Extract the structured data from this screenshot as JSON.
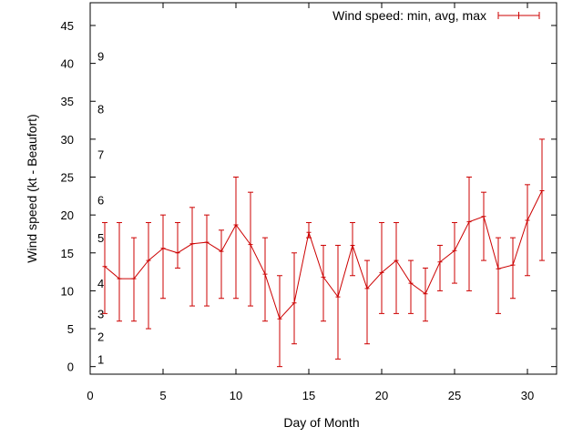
{
  "chart_data": {
    "type": "line",
    "xlabel": "Day of Month",
    "ylabel": "Wind speed (kt - Beaufort)",
    "xlim": [
      0,
      32
    ],
    "ylim": [
      -1,
      48
    ],
    "xticks": [
      0,
      5,
      10,
      15,
      20,
      25,
      30
    ],
    "yticks": [
      0,
      5,
      10,
      15,
      20,
      25,
      30,
      35,
      40,
      45
    ],
    "grid": false,
    "legend_position": "top-right",
    "color": "#cc0000",
    "series": [
      {
        "name": "Wind speed: min, avg, max",
        "x": [
          1,
          2,
          3,
          4,
          5,
          6,
          7,
          8,
          9,
          10,
          11,
          12,
          13,
          14,
          15,
          16,
          17,
          18,
          19,
          20,
          21,
          22,
          23,
          24,
          25,
          26,
          27,
          28,
          29,
          30,
          31
        ],
        "avg": [
          13.2,
          11.6,
          11.6,
          14,
          15.6,
          15,
          16.2,
          16.4,
          15.2,
          18.7,
          16.1,
          12.2,
          6.3,
          8.4,
          17.7,
          11.8,
          9.2,
          16,
          10.3,
          12.4,
          14,
          11,
          9.6,
          13.8,
          15.3,
          19.1,
          19.8,
          12.9,
          13.4,
          19.3,
          23.2
        ],
        "min": [
          7,
          6,
          6,
          5,
          9,
          13,
          8,
          8,
          9,
          9,
          8,
          6,
          0,
          3,
          17,
          6,
          1,
          12,
          3,
          7,
          7,
          7,
          6,
          10,
          11,
          10,
          14,
          7,
          9,
          12,
          14
        ],
        "max": [
          19,
          19,
          17,
          19,
          20,
          19,
          21,
          20,
          18,
          25,
          23,
          17,
          12,
          15,
          19,
          16,
          16,
          19,
          14,
          19,
          19,
          14,
          13,
          16,
          19,
          25,
          23,
          17,
          17,
          24,
          30
        ]
      }
    ],
    "beaufort_labels": [
      {
        "label": "1",
        "y": 1
      },
      {
        "label": "2",
        "y": 4
      },
      {
        "label": "3",
        "y": 7
      },
      {
        "label": "4",
        "y": 11
      },
      {
        "label": "5",
        "y": 17
      },
      {
        "label": "6",
        "y": 22
      },
      {
        "label": "7",
        "y": 28
      },
      {
        "label": "8",
        "y": 34
      },
      {
        "label": "9",
        "y": 41
      }
    ]
  }
}
